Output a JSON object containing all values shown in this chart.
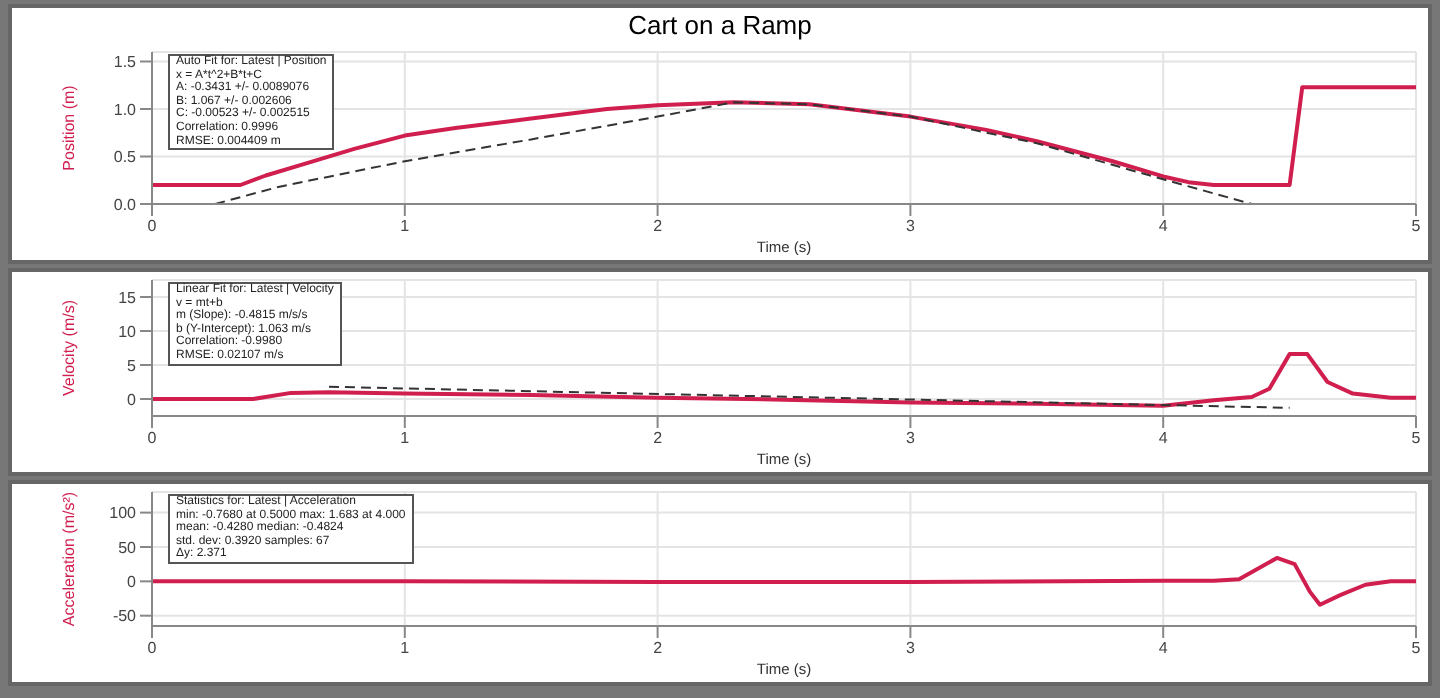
{
  "chart_data": [
    {
      "type": "line",
      "title": "Cart on a Ramp",
      "xlabel": "Time (s)",
      "ylabel": "Position (m)",
      "xlim": [
        0,
        5
      ],
      "xticks": [
        0,
        1,
        2,
        3,
        4,
        5
      ],
      "ylim": [
        0,
        1.6
      ],
      "yticks": [
        {
          "value": 0,
          "label": "0.0"
        },
        {
          "value": 0.5,
          "label": "0.5"
        },
        {
          "value": 1,
          "label": "1.0"
        },
        {
          "value": 1.5,
          "label": "1.5"
        }
      ],
      "grid": true,
      "series": [
        {
          "color": "#d01f4e",
          "line_style": "solid",
          "x": [
            0,
            0.35,
            0.45,
            0.6,
            0.8,
            1,
            1.2,
            1.5,
            1.8,
            2,
            2.3,
            2.6,
            3,
            3.3,
            3.5,
            3.8,
            4,
            4.1,
            4.2,
            4.5,
            4.55,
            5
          ],
          "values": [
            0.2,
            0.2,
            0.3,
            0.42,
            0.58,
            0.72,
            0.8,
            0.9,
            1.0,
            1.04,
            1.07,
            1.05,
            0.92,
            0.78,
            0.66,
            0.45,
            0.29,
            0.23,
            0.2,
            0.2,
            1.23,
            1.23
          ]
        },
        {
          "color": "#333333",
          "line_style": "dashed",
          "x": [
            0.25,
            0.5,
            1,
            1.5,
            2,
            2.3,
            2.6,
            3,
            3.5,
            4,
            4.35
          ],
          "values": [
            0,
            0.18,
            0.45,
            0.68,
            0.92,
            1.07,
            1.05,
            0.92,
            0.64,
            0.26,
            0
          ]
        }
      ],
      "annotations": [
        "Auto Fit for: Latest | Position",
        "x = A*t^2+B*t+C",
        "A: -0.3431 +/- 0.0089076",
        "B: 1.067 +/- 0.002606",
        "C: -0.00523 +/- 0.002515",
        "Correlation: 0.9996",
        "RMSE: 0.004409 m"
      ]
    },
    {
      "type": "line",
      "xlabel": "Time (s)",
      "ylabel": "Velocity (m/s)",
      "xlim": [
        0,
        5
      ],
      "xticks": [
        0,
        1,
        2,
        3,
        4,
        5
      ],
      "ylim": [
        -2.5,
        17.5
      ],
      "yticks": [
        0,
        5,
        10,
        15
      ],
      "grid": true,
      "series": [
        {
          "color": "#d01f4e",
          "line_style": "solid",
          "x": [
            0,
            0.4,
            0.55,
            0.7,
            1,
            1.5,
            2,
            2.5,
            3,
            3.5,
            4,
            4.2,
            4.35,
            4.42,
            4.5,
            4.57,
            4.65,
            4.75,
            4.9,
            5
          ],
          "values": [
            0,
            0,
            0.9,
            1.0,
            0.8,
            0.6,
            0.2,
            -0.1,
            -0.5,
            -0.7,
            -1.0,
            -0.2,
            0.3,
            1.5,
            6.6,
            6.6,
            2.5,
            0.8,
            0.2,
            0.2
          ]
        },
        {
          "color": "#333333",
          "line_style": "dashed",
          "x": [
            0.7,
            4.5
          ],
          "values": [
            1.8,
            -1.3
          ]
        }
      ],
      "annotations": [
        "Linear Fit for: Latest | Velocity",
        "v = mt+b",
        "m (Slope): -0.4815 m/s/s",
        "b (Y-Intercept): 1.063 m/s",
        "Correlation: -0.9980",
        "RMSE: 0.02107 m/s"
      ]
    },
    {
      "type": "line",
      "xlabel": "Time (s)",
      "ylabel": "Acceleration (m/s²)",
      "xlim": [
        0,
        5
      ],
      "xticks": [
        0,
        1,
        2,
        3,
        4,
        5
      ],
      "ylim": [
        -65,
        130
      ],
      "yticks": [
        -50,
        0,
        50,
        100
      ],
      "grid": true,
      "series": [
        {
          "color": "#d01f4e",
          "line_style": "solid",
          "x": [
            0,
            1,
            2,
            3,
            4,
            4.2,
            4.3,
            4.45,
            4.52,
            4.58,
            4.62,
            4.7,
            4.8,
            4.9,
            5
          ],
          "values": [
            0,
            0,
            -1,
            -1,
            1,
            1,
            3,
            34,
            25,
            -15,
            -34,
            -20,
            -5,
            0,
            0
          ]
        }
      ],
      "annotations": [
        "Statistics for: Latest | Acceleration",
        "min: -0.7680 at 0.5000 max: 1.683 at 4.000",
        "mean: -0.4280 median: -0.4824",
        "std. dev: 0.3920 samples: 67",
        "Δy: 2.371"
      ]
    }
  ]
}
